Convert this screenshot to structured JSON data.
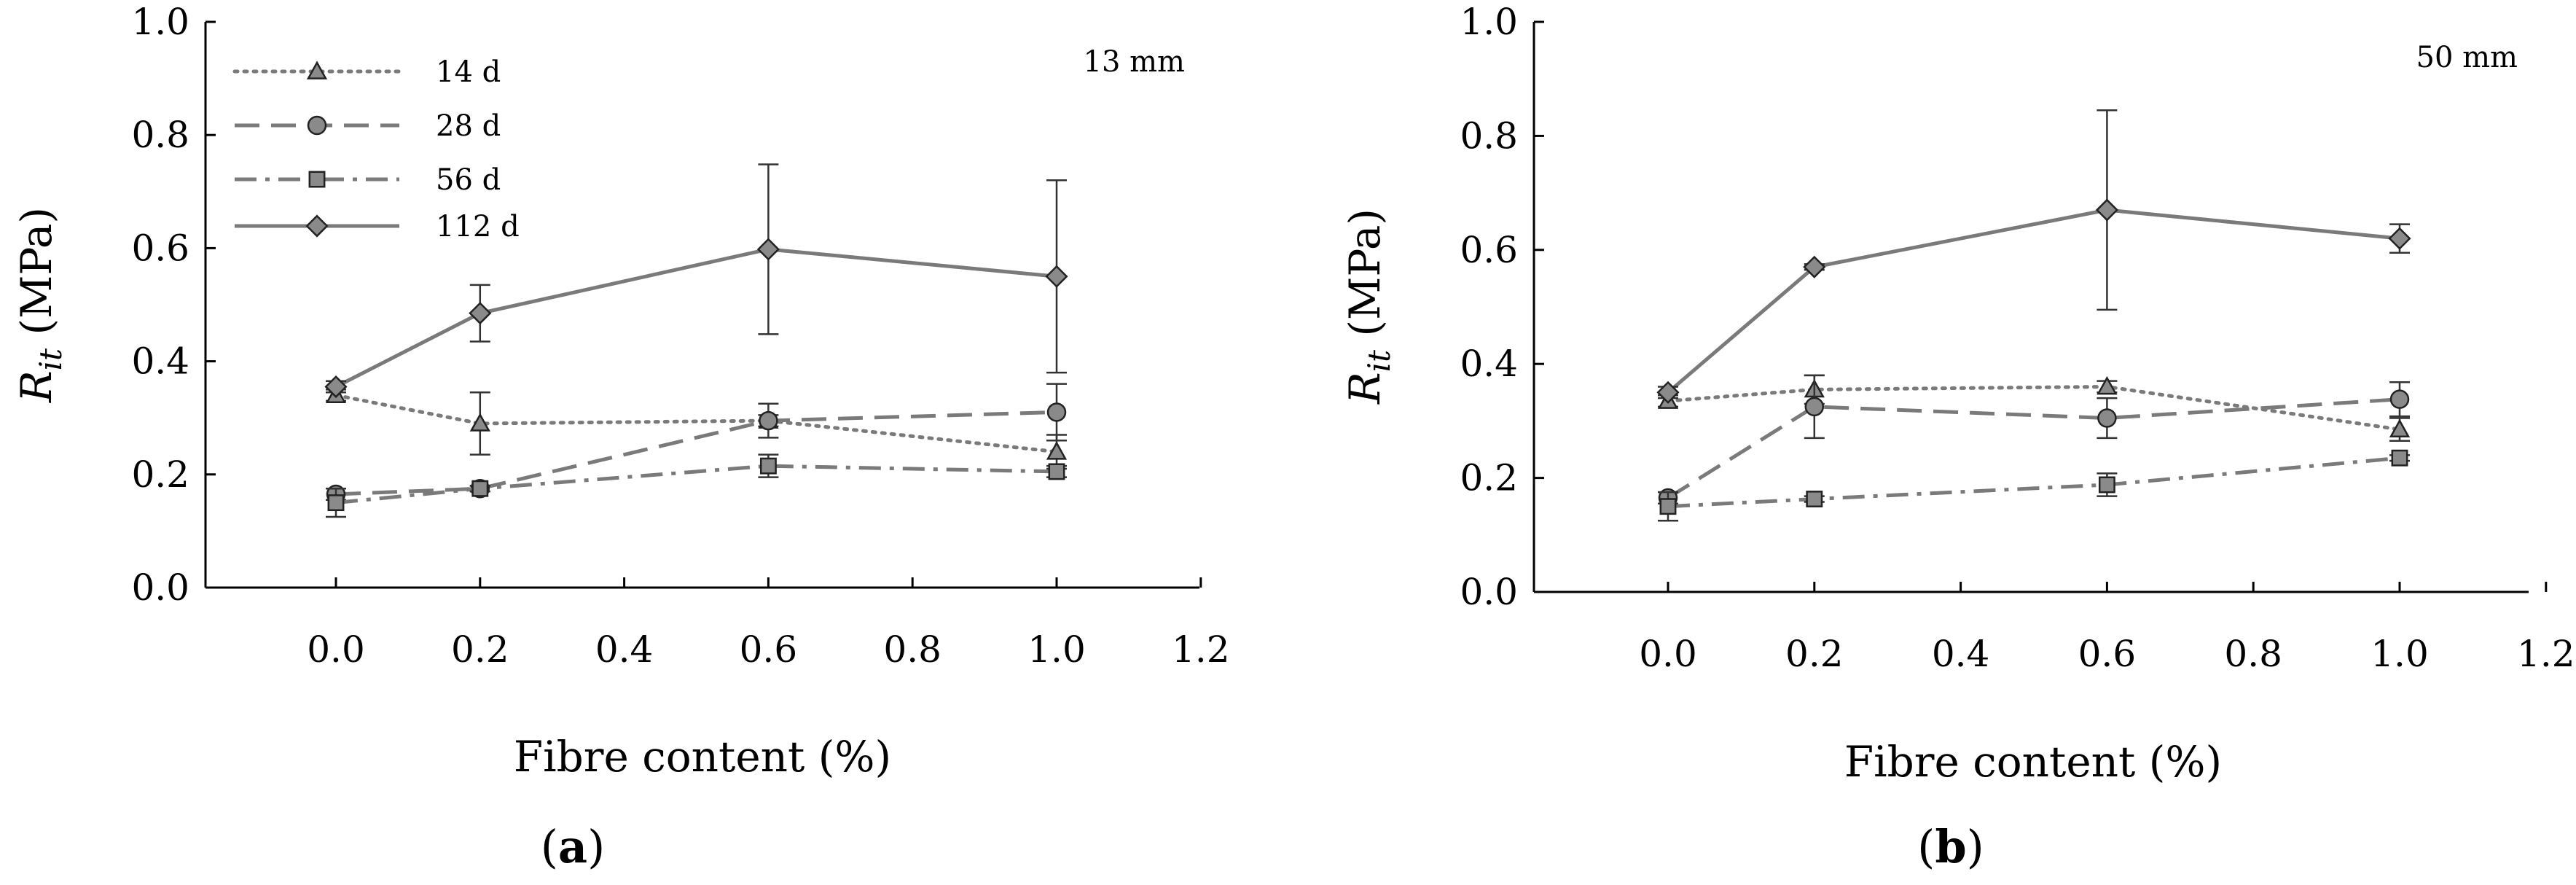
{
  "figure": {
    "panels": [
      "a",
      "b"
    ],
    "legend_entries": [
      "14 d",
      "28 d",
      "56 d",
      "112 d"
    ]
  },
  "chart_data": [
    {
      "type": "line",
      "panel_label": "(a)",
      "panel_letter": "a",
      "annotation": "13 mm",
      "xlabel": "Fibre content (%)",
      "ylabel_main": "R",
      "ylabel_sub": "it",
      "ylabel_unit": " (MPa)",
      "xlim": [
        -0.18,
        1.2
      ],
      "ylim": [
        0,
        1.0
      ],
      "xticks": [
        "0.0",
        "0.2",
        "0.4",
        "0.6",
        "0.8",
        "1.0",
        "1.2"
      ],
      "yticks": [
        "0.0",
        "0.2",
        "0.4",
        "0.6",
        "0.8",
        "1.0"
      ],
      "legend": true,
      "series": [
        {
          "name": "14 d",
          "style": "dotted",
          "marker": "triangle",
          "color": "#7a7a7a",
          "x": [
            0,
            0.2,
            0.6,
            1.0
          ],
          "y": [
            0.34,
            0.29,
            0.295,
            0.24
          ],
          "err": [
            0.01,
            0.055,
            0.01,
            0.03
          ]
        },
        {
          "name": "28 d",
          "style": "dashed",
          "marker": "circle",
          "color": "#7a7a7a",
          "x": [
            0,
            0.2,
            0.6,
            1.0
          ],
          "y": [
            0.165,
            0.175,
            0.295,
            0.31
          ],
          "err": [
            0.01,
            0.005,
            0.03,
            0.05
          ]
        },
        {
          "name": "56 d",
          "style": "dashdot",
          "marker": "square",
          "color": "#7a7a7a",
          "x": [
            0,
            0.2,
            0.6,
            1.0
          ],
          "y": [
            0.15,
            0.175,
            0.215,
            0.205
          ],
          "err": [
            0.025,
            0.005,
            0.02,
            0.01
          ]
        },
        {
          "name": "112 d",
          "style": "solid",
          "marker": "diamond",
          "color": "#7a7a7a",
          "x": [
            0,
            0.2,
            0.6,
            1.0
          ],
          "y": [
            0.355,
            0.485,
            0.598,
            0.55
          ],
          "err": [
            0.01,
            0.05,
            0.15,
            0.17
          ]
        }
      ]
    },
    {
      "type": "line",
      "panel_label": "(b)",
      "panel_letter": "b",
      "annotation": "50 mm",
      "xlabel": "Fibre content (%)",
      "ylabel_main": "R",
      "ylabel_sub": "it",
      "ylabel_unit": " (MPa)",
      "xlim": [
        -0.18,
        1.2
      ],
      "ylim": [
        0,
        1.0
      ],
      "xticks": [
        "0.0",
        "0.2",
        "0.4",
        "0.6",
        "0.8",
        "1.0",
        "1.2"
      ],
      "yticks": [
        "0.0",
        "0.2",
        "0.4",
        "0.6",
        "0.8",
        "1.0"
      ],
      "legend": false,
      "series": [
        {
          "name": "14 d",
          "style": "dotted",
          "marker": "triangle",
          "color": "#7a7a7a",
          "x": [
            0,
            0.2,
            0.6,
            1.0
          ],
          "y": [
            0.335,
            0.355,
            0.36,
            0.285
          ],
          "err": [
            0.01,
            0.025,
            0.01,
            0.02
          ]
        },
        {
          "name": "28 d",
          "style": "dashed",
          "marker": "circle",
          "color": "#7a7a7a",
          "x": [
            0,
            0.2,
            0.6,
            1.0
          ],
          "y": [
            0.165,
            0.325,
            0.305,
            0.338
          ],
          "err": [
            0.01,
            0.055,
            0.035,
            0.03
          ]
        },
        {
          "name": "56 d",
          "style": "dashdot",
          "marker": "square",
          "color": "#7a7a7a",
          "x": [
            0,
            0.2,
            0.6,
            1.0
          ],
          "y": [
            0.15,
            0.163,
            0.188,
            0.235
          ],
          "err": [
            0.025,
            0.005,
            0.02,
            0.005
          ]
        },
        {
          "name": "112 d",
          "style": "solid",
          "marker": "diamond",
          "color": "#7a7a7a",
          "x": [
            0,
            0.2,
            0.6,
            1.0
          ],
          "y": [
            0.35,
            0.57,
            0.67,
            0.62
          ],
          "err": [
            0.01,
            0.005,
            0.175,
            0.025
          ]
        }
      ]
    }
  ]
}
